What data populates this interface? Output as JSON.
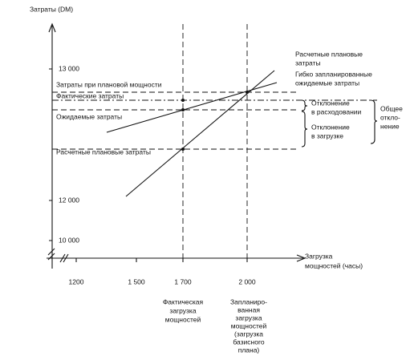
{
  "axes": {
    "y_title": "Затраты (DM)",
    "x_title": [
      "Загрузка",
      "мощностей (часы)"
    ],
    "y_ticks": [
      "13 000",
      "12 000",
      "10 000"
    ],
    "x_ticks": [
      "1200",
      "1 500",
      "1 700",
      "2 000"
    ]
  },
  "left_labels": [
    "Затраты при плановой мощности",
    "Фактические затраты",
    "Ожидаемые затраты",
    "Расчетные плановые затраты"
  ],
  "legend": {
    "planned": [
      "Расчетные плановые",
      "затраты"
    ],
    "flexible": [
      "Гибко запланированные",
      "ожидаемые затраты"
    ]
  },
  "variances": {
    "spending": [
      "Отклонение",
      "в расходовании"
    ],
    "volume": [
      "Отклонение",
      "в загрузке"
    ],
    "total": [
      "Общее",
      "откло-",
      "нение"
    ]
  },
  "x_notes": {
    "actual": [
      "Фактическая",
      "загрузка",
      "мощностей"
    ],
    "planned": [
      "Запланиро-",
      "ванная",
      "загрузка",
      "мощностей",
      "(загрузка",
      "базисного",
      "плана)"
    ]
  }
}
